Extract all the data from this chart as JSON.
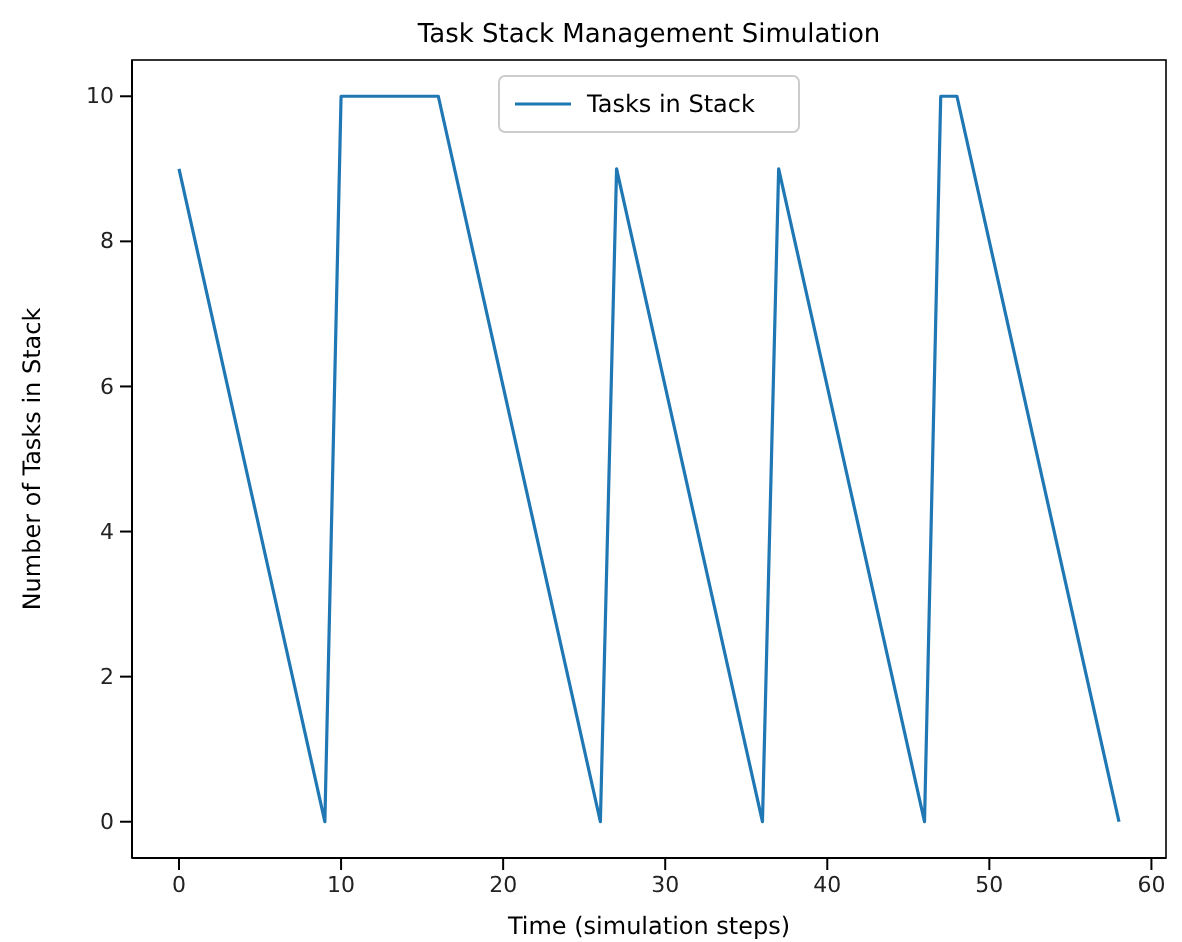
{
  "chart_data": {
    "type": "line",
    "title": "Task Stack Management Simulation",
    "xlabel": "Time (simulation steps)",
    "ylabel": "Number of Tasks in Stack",
    "x": [
      0,
      9,
      10,
      16,
      26,
      27,
      36,
      37,
      46,
      47,
      48,
      58
    ],
    "series": [
      {
        "name": "Tasks in Stack",
        "color": "#1f77b4",
        "values": [
          9,
          0,
          10,
          10,
          0,
          9,
          0,
          9,
          0,
          10,
          10,
          0
        ]
      }
    ],
    "xlim": [
      -2.9,
      60.9
    ],
    "xticks": [
      0,
      10,
      20,
      30,
      40,
      50,
      60
    ],
    "ylim": [
      -0.5,
      10.5
    ],
    "yticks": [
      0,
      2,
      4,
      6,
      8,
      10
    ],
    "grid": false,
    "legend": "top",
    "marker": "none",
    "line_style": "solid"
  }
}
